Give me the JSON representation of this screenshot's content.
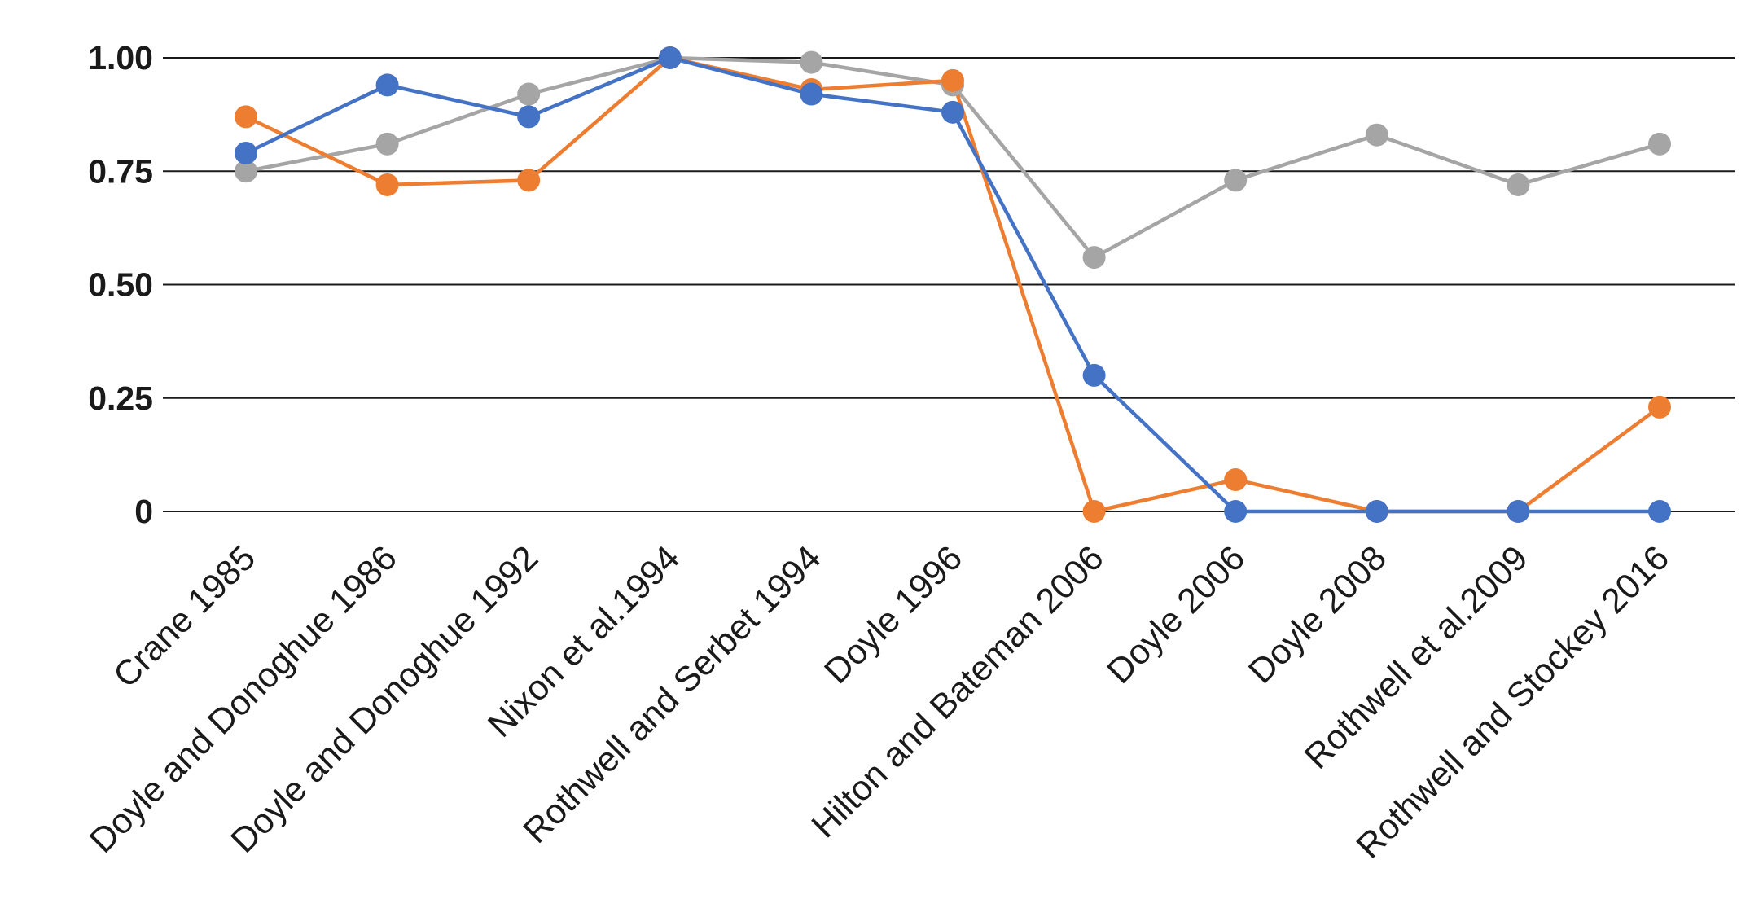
{
  "chart_data": {
    "type": "line",
    "title": "",
    "xlabel": "",
    "ylabel": "",
    "ylim": [
      0,
      1
    ],
    "yticks": [
      {
        "value": 0,
        "label": "0"
      },
      {
        "value": 0.25,
        "label": "0.25"
      },
      {
        "value": 0.5,
        "label": "0.50"
      },
      {
        "value": 0.75,
        "label": "0.75"
      },
      {
        "value": 1,
        "label": "1.00"
      }
    ],
    "grid": true,
    "legend": "none",
    "categories": [
      "Crane 1985",
      "Doyle and Donoghue 1986",
      "Doyle and Donoghue 1992",
      "Nixon et al.1994",
      "Rothwell and Serbet 1994",
      "Doyle 1996",
      "Hilton and Bateman 2006",
      "Doyle 2006",
      "Doyle 2008",
      "Rothwell et al.2009",
      "Rothwell and Stockey 2016"
    ],
    "series": [
      {
        "color": "#4472C4",
        "values": [
          0.79,
          0.94,
          0.87,
          1.0,
          0.92,
          0.88,
          0.3,
          0.0,
          0.0,
          0.0,
          0.0
        ]
      },
      {
        "color": "#ED7D31",
        "values": [
          0.87,
          0.72,
          0.73,
          1.0,
          0.93,
          0.95,
          0.0,
          0.07,
          0.0,
          0.0,
          0.23
        ]
      },
      {
        "color": "#A5A5A5",
        "values": [
          0.75,
          0.81,
          0.92,
          1.0,
          0.99,
          0.94,
          0.56,
          0.73,
          0.83,
          0.72,
          0.81
        ]
      }
    ]
  }
}
